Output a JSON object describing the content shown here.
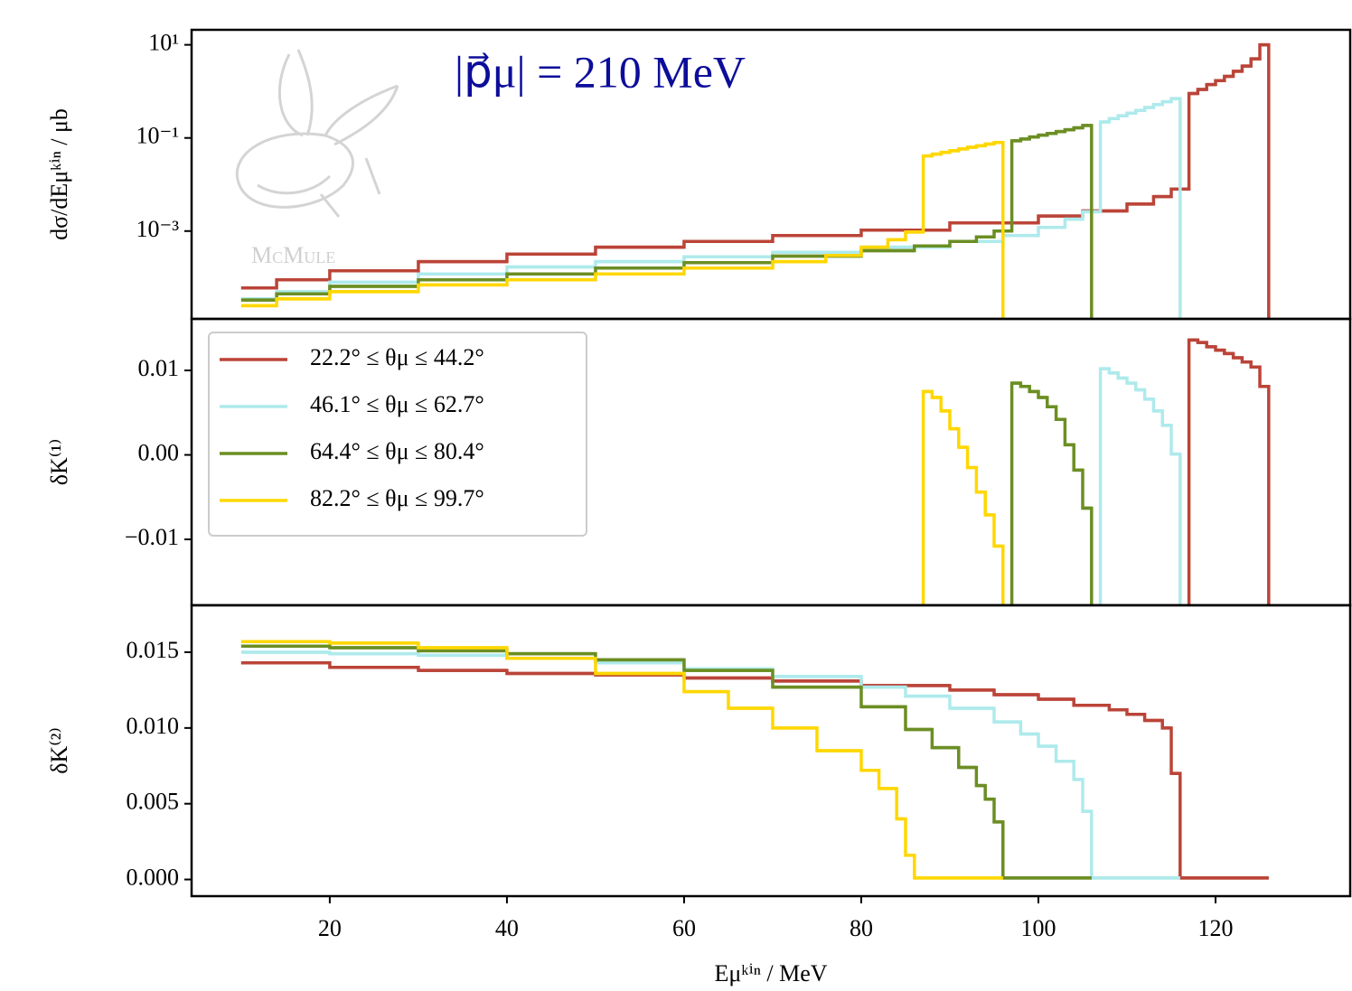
{
  "chart_data": [
    {
      "type": "step",
      "ylog": true,
      "ylabel": "dσ/dEμᵏⁱⁿ / μb",
      "annotation": "|p⃗μ| = 210 MeV",
      "watermark": "McMule",
      "ylim": [
        1.3e-05,
        21
      ],
      "yticks": [
        {
          "value": 10,
          "label": "10¹"
        },
        {
          "value": 0.1,
          "label": "10⁻¹"
        },
        {
          "value": 0.001,
          "label": "10⁻³"
        }
      ],
      "series": [
        {
          "color": "#bb4438",
          "bins": [
            10,
            14,
            20,
            30,
            40,
            50,
            60,
            70,
            80,
            90,
            100,
            105,
            110,
            113,
            115,
            117,
            118,
            119,
            120,
            121,
            122,
            123,
            124,
            125,
            126
          ],
          "values": [
            6e-05,
            9e-05,
            0.00014,
            0.00022,
            0.00032,
            0.00045,
            0.0006,
            0.0008,
            0.00105,
            0.0015,
            0.0021,
            0.0027,
            0.0038,
            0.0055,
            0.008,
            0.9,
            1.1,
            1.4,
            1.7,
            2.1,
            2.7,
            3.5,
            5,
            10
          ]
        },
        {
          "color": "#aeeaec",
          "bins": [
            10,
            14,
            20,
            30,
            40,
            50,
            60,
            70,
            80,
            90,
            96,
            100,
            103,
            105,
            107,
            108,
            109,
            110,
            111,
            112,
            113,
            114,
            115,
            116
          ],
          "values": [
            3.5e-05,
            5e-05,
            8e-05,
            0.00012,
            0.00017,
            0.00022,
            0.00028,
            0.00035,
            0.00045,
            0.0006,
            0.0008,
            0.0012,
            0.0018,
            0.0026,
            0.22,
            0.26,
            0.3,
            0.34,
            0.39,
            0.45,
            0.52,
            0.6,
            0.7
          ]
        },
        {
          "color": "#6b8e23",
          "bins": [
            10,
            14,
            20,
            30,
            40,
            50,
            60,
            70,
            80,
            86,
            90,
            93,
            95,
            97,
            98,
            99,
            100,
            101,
            102,
            103,
            104,
            105,
            106
          ],
          "values": [
            3.3e-05,
            4.5e-05,
            6.5e-05,
            9e-05,
            0.00012,
            0.00016,
            0.00021,
            0.00029,
            0.00038,
            0.00048,
            0.0006,
            0.00075,
            0.001,
            0.087,
            0.095,
            0.105,
            0.115,
            0.125,
            0.137,
            0.15,
            0.165,
            0.185
          ]
        },
        {
          "color": "#ffd700",
          "bins": [
            10,
            14,
            20,
            30,
            40,
            50,
            60,
            70,
            76,
            80,
            83,
            85,
            87,
            88,
            89,
            90,
            91,
            92,
            93,
            94,
            95,
            96
          ],
          "values": [
            2.5e-05,
            3.5e-05,
            5e-05,
            7e-05,
            9e-05,
            0.00012,
            0.00016,
            0.00022,
            0.0003,
            0.00045,
            0.00065,
            0.00095,
            0.041,
            0.045,
            0.049,
            0.053,
            0.058,
            0.063,
            0.068,
            0.074,
            0.08
          ]
        }
      ]
    },
    {
      "type": "step",
      "ylabel": "δK⁽¹⁾",
      "legend": "upper left",
      "ylim": [
        -0.0178,
        0.0161
      ],
      "yticks": [
        0.01,
        {
          "value": 0,
          "label": "0.00"
        },
        {
          "value": -0.01,
          "label": "−0.01"
        }
      ],
      "series": [
        {
          "name": "22.2° ≤ θμ ≤ 44.2°",
          "color": "#bb4438",
          "bins": [
            117,
            118,
            119,
            120,
            121,
            122,
            123,
            124,
            125,
            126
          ],
          "values": [
            0.0136,
            0.0133,
            0.0128,
            0.0124,
            0.012,
            0.0115,
            0.011,
            0.0104,
            0.0081
          ]
        },
        {
          "name": "46.1° ≤ θμ ≤ 62.7°",
          "color": "#aeeaec",
          "bins": [
            107,
            108,
            109,
            110,
            111,
            112,
            113,
            114,
            115,
            116
          ],
          "values": [
            0.0102,
            0.0097,
            0.0091,
            0.0085,
            0.0077,
            0.0066,
            0.0052,
            0.0035,
            0.0001
          ]
        },
        {
          "name": "64.4° ≤ θμ ≤ 80.4°",
          "color": "#6b8e23",
          "bins": [
            97,
            98,
            99,
            100,
            101,
            102,
            103,
            104,
            105,
            106
          ],
          "values": [
            0.0085,
            0.0081,
            0.0075,
            0.0068,
            0.0057,
            0.0042,
            0.0012,
            -0.0018,
            -0.0063
          ]
        },
        {
          "name": "82.2° ≤ θμ ≤ 99.7°",
          "color": "#ffd700",
          "bins": [
            87,
            88,
            89,
            90,
            91,
            92,
            93,
            94,
            95,
            96
          ],
          "values": [
            0.0075,
            0.0068,
            0.0052,
            0.0031,
            0.0009,
            -0.0015,
            -0.0044,
            -0.0071,
            -0.0108
          ]
        }
      ]
    },
    {
      "type": "step",
      "ylabel": "δK⁽²⁾",
      "xlabel": "Eμᵏⁱⁿ / MeV",
      "xlim": [
        4.4,
        135.2
      ],
      "xticks": [
        20,
        40,
        60,
        80,
        100,
        120
      ],
      "ylim": [
        -0.0011,
        0.0181
      ],
      "yticks": [
        0.015,
        {
          "value": 0.01,
          "label": "0.010"
        },
        0.005,
        {
          "value": 0,
          "label": "0.000"
        }
      ],
      "series": [
        {
          "color": "#bb4438",
          "bins": [
            10,
            20,
            30,
            40,
            50,
            60,
            70,
            80,
            90,
            95,
            100,
            104,
            108,
            110,
            112,
            114,
            115,
            116,
            126
          ],
          "values": [
            0.0143,
            0.014,
            0.0138,
            0.0136,
            0.0135,
            0.0133,
            0.0131,
            0.0128,
            0.0125,
            0.0122,
            0.0119,
            0.0115,
            0.0112,
            0.0109,
            0.0105,
            0.01,
            0.007,
            0.0001
          ]
        },
        {
          "color": "#aeeaec",
          "bins": [
            10,
            20,
            30,
            40,
            50,
            60,
            70,
            80,
            85,
            90,
            95,
            98,
            100,
            102,
            104,
            105,
            106,
            116
          ],
          "values": [
            0.015,
            0.0149,
            0.0148,
            0.0146,
            0.0143,
            0.0139,
            0.0134,
            0.0127,
            0.0121,
            0.0113,
            0.0104,
            0.0096,
            0.0088,
            0.0078,
            0.0066,
            0.0045,
            0.0001
          ]
        },
        {
          "color": "#6b8e23",
          "bins": [
            10,
            20,
            30,
            40,
            50,
            60,
            70,
            80,
            85,
            88,
            91,
            93,
            94,
            95,
            96,
            106
          ],
          "values": [
            0.0154,
            0.0153,
            0.0151,
            0.0149,
            0.0145,
            0.0138,
            0.0127,
            0.0114,
            0.0099,
            0.0087,
            0.0074,
            0.0062,
            0.0053,
            0.0038,
            0.0001
          ]
        },
        {
          "color": "#ffd700",
          "bins": [
            10,
            20,
            30,
            40,
            50,
            60,
            65,
            70,
            75,
            80,
            82,
            84,
            85,
            86,
            96
          ],
          "values": [
            0.0157,
            0.0156,
            0.0153,
            0.0146,
            0.0136,
            0.0124,
            0.0113,
            0.01,
            0.0085,
            0.0072,
            0.006,
            0.004,
            0.0016,
            0.0001
          ]
        }
      ]
    }
  ]
}
